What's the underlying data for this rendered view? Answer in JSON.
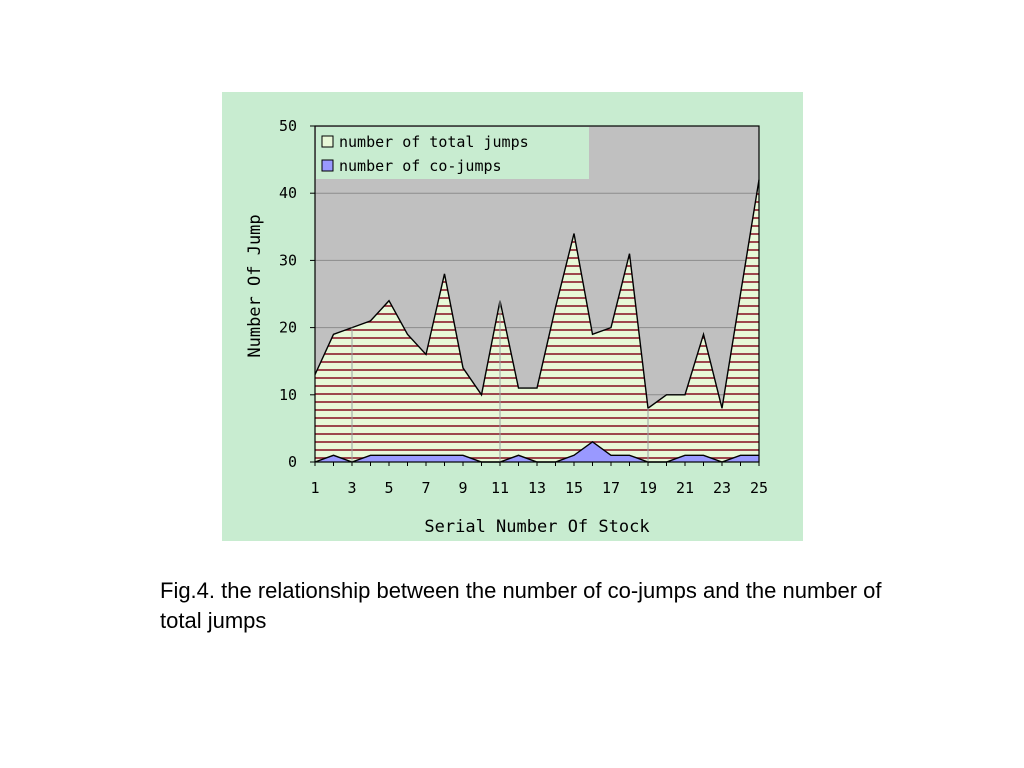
{
  "caption": "Fig.4. the relationship between the number of co-jumps and the number of total jumps",
  "chart_data": {
    "type": "area",
    "xlabel": "Serial Number Of Stock",
    "ylabel": "Number Of Jump",
    "x": [
      1,
      2,
      3,
      4,
      5,
      6,
      7,
      8,
      9,
      10,
      11,
      12,
      13,
      14,
      15,
      16,
      17,
      18,
      19,
      20,
      21,
      22,
      23,
      24,
      25
    ],
    "x_tick_labels": [
      "1",
      "3",
      "5",
      "7",
      "9",
      "11",
      "13",
      "15",
      "17",
      "19",
      "21",
      "23",
      "25"
    ],
    "ylim": [
      0,
      50
    ],
    "y_ticks": [
      0,
      10,
      20,
      30,
      40,
      50
    ],
    "grid": "horizontal",
    "legend_position": "top-left",
    "series": [
      {
        "name": "number of total jumps",
        "values": [
          13,
          19,
          20,
          21,
          24,
          19,
          16,
          28,
          14,
          10,
          24,
          11,
          11,
          23,
          34,
          19,
          20,
          31,
          8,
          10,
          10,
          19,
          8,
          25,
          42
        ],
        "fill": "#e8f8d8",
        "hatch": "#8b1a2a"
      },
      {
        "name": "number of co-jumps",
        "values": [
          0,
          1,
          0,
          1,
          1,
          1,
          1,
          1,
          1,
          0,
          0,
          1,
          0,
          0,
          1,
          3,
          1,
          1,
          0,
          0,
          1,
          1,
          0,
          1,
          1
        ],
        "fill": "#9999ff"
      }
    ],
    "plot_background": "#c0c0c0",
    "panel_background": "#c8ecd0"
  }
}
